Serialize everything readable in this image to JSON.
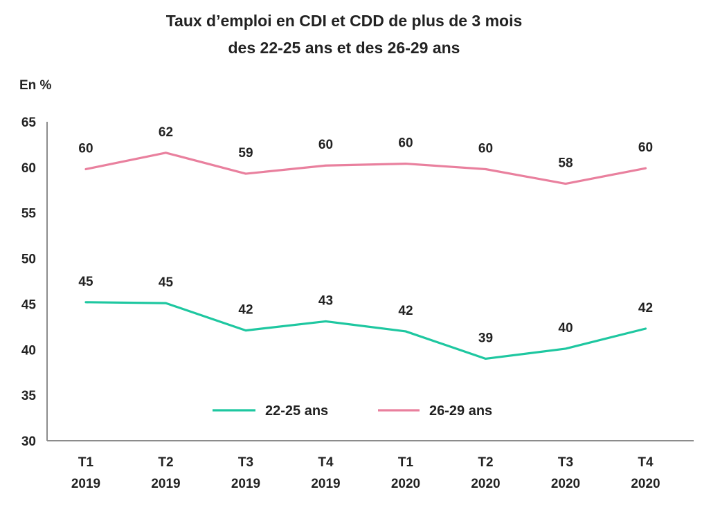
{
  "chart_data": {
    "type": "line",
    "title": [
      "Taux d’emploi en CDI et CDD de plus de 3 mois",
      "des 22-25 ans et des 26-29 ans"
    ],
    "unit_label": "En %",
    "ylim": [
      30,
      65
    ],
    "yticks": [
      "30",
      "35",
      "40",
      "45",
      "50",
      "55",
      "60",
      "65"
    ],
    "categories": [
      {
        "quarter": "T1",
        "year": "2019"
      },
      {
        "quarter": "T2",
        "year": "2019"
      },
      {
        "quarter": "T3",
        "year": "2019"
      },
      {
        "quarter": "T4",
        "year": "2019"
      },
      {
        "quarter": "T1",
        "year": "2020"
      },
      {
        "quarter": "T2",
        "year": "2020"
      },
      {
        "quarter": "T3",
        "year": "2020"
      },
      {
        "quarter": "T4",
        "year": "2020"
      }
    ],
    "series": [
      {
        "name": "22-25 ans",
        "color": "#1ec7a0",
        "values": [
          45.2,
          45.1,
          42.1,
          43.1,
          42.0,
          39.0,
          40.1,
          42.3
        ],
        "labels": [
          "45",
          "45",
          "42",
          "43",
          "42",
          "39",
          "40",
          "42"
        ]
      },
      {
        "name": "26-29 ans",
        "color": "#e9809e",
        "values": [
          59.8,
          61.6,
          59.3,
          60.2,
          60.4,
          59.8,
          58.2,
          59.9
        ],
        "labels": [
          "60",
          "62",
          "59",
          "60",
          "60",
          "60",
          "58",
          "60"
        ]
      }
    ],
    "legend_position": "bottom-center",
    "grid": false
  }
}
